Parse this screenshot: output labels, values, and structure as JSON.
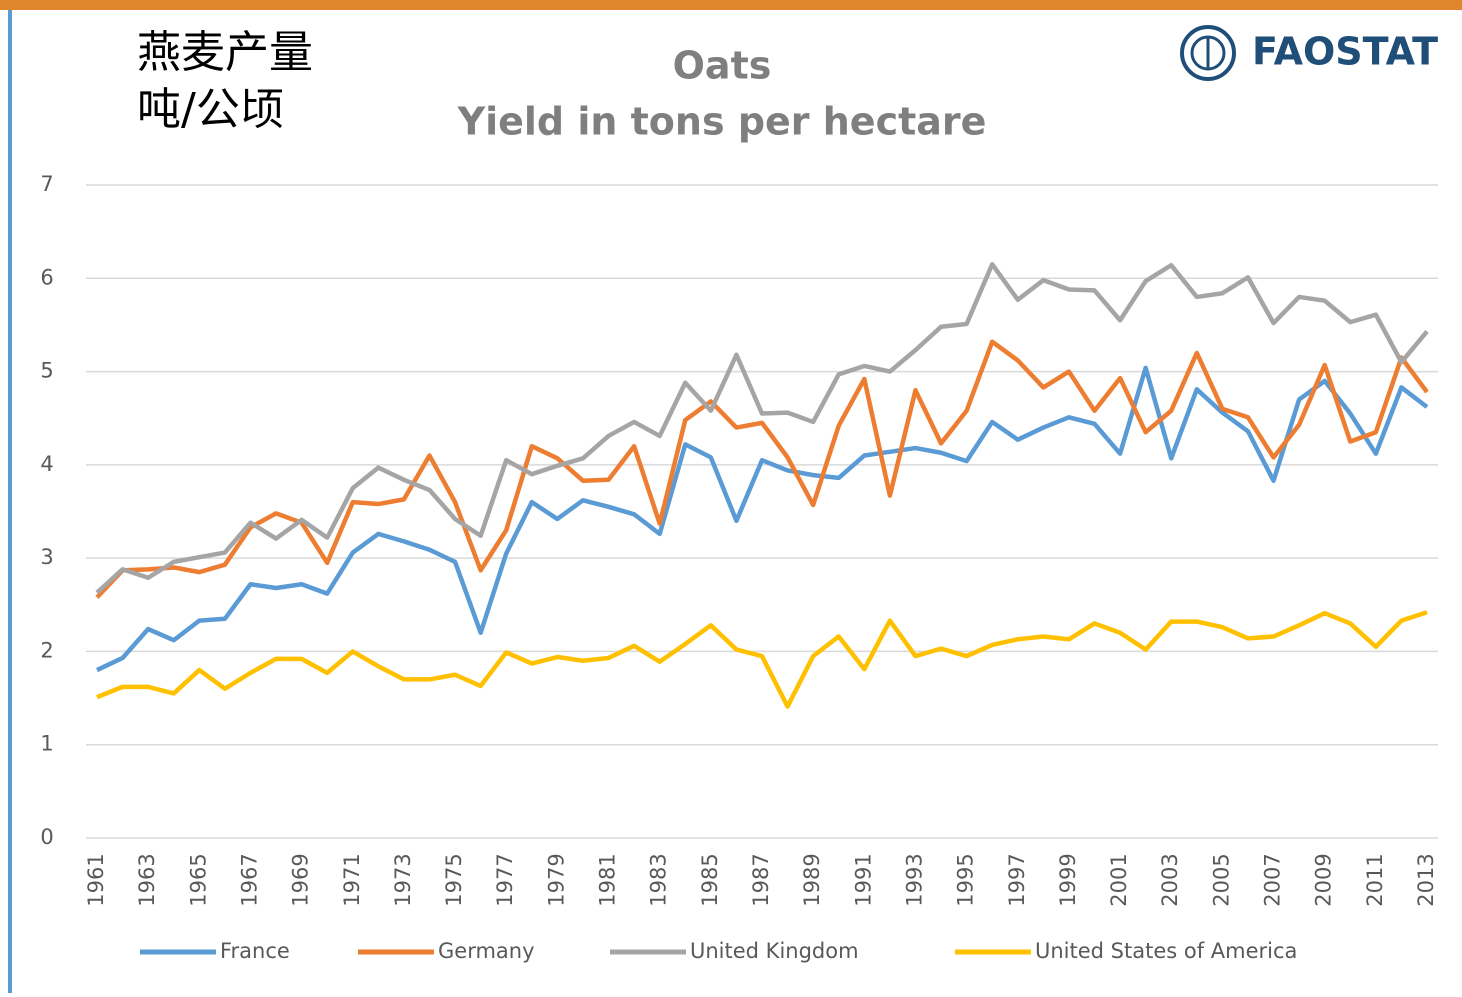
{
  "chart_data": {
    "type": "line",
    "title": "Oats",
    "subtitle": "Yield in tons per hectare",
    "annotations": [
      "燕麦产量",
      "吨/公顷"
    ],
    "logo": "FAOSTAT",
    "categories": [
      "1961",
      null,
      "1963",
      null,
      "1965",
      null,
      "1967",
      null,
      "1969",
      null,
      "1971",
      null,
      "1973",
      null,
      "1975",
      null,
      "1977",
      null,
      "1979",
      null,
      "1981",
      null,
      "1983",
      null,
      "1985",
      null,
      "1987",
      null,
      "1989",
      null,
      "1991",
      null,
      "1993",
      null,
      "1995",
      null,
      "1997",
      null,
      "1999",
      null,
      "2001",
      null,
      "2003",
      null,
      "2005",
      null,
      "2007",
      null,
      "2009",
      null,
      "2011",
      null,
      "2013"
    ],
    "series": [
      {
        "name": "France",
        "color": "#5b9bd5",
        "values": [
          1.8,
          1.93,
          2.24,
          2.12,
          2.33,
          2.35,
          2.72,
          2.68,
          2.72,
          2.62,
          3.06,
          3.26,
          3.18,
          3.09,
          2.96,
          2.2,
          3.05,
          3.6,
          3.42,
          3.62,
          3.55,
          3.47,
          3.26,
          4.22,
          4.08,
          3.4,
          4.05,
          3.94,
          3.89,
          3.86,
          4.1,
          4.14,
          4.18,
          4.13,
          4.04,
          4.46,
          4.27,
          4.4,
          4.51,
          4.44,
          4.12,
          5.04,
          4.07,
          4.81,
          4.56,
          4.36,
          3.83,
          4.7,
          4.9,
          4.55,
          4.12,
          4.83,
          4.62
        ]
      },
      {
        "name": "Germany",
        "color": "#ed7d31",
        "values": [
          2.58,
          2.87,
          2.88,
          2.9,
          2.85,
          2.93,
          3.33,
          3.48,
          3.38,
          2.95,
          3.6,
          3.58,
          3.63,
          4.1,
          3.6,
          2.87,
          3.3,
          4.2,
          4.07,
          3.83,
          3.84,
          4.2,
          3.37,
          4.48,
          4.68,
          4.4,
          4.45,
          4.08,
          3.57,
          4.42,
          4.92,
          3.67,
          4.8,
          4.23,
          4.58,
          5.32,
          5.12,
          4.83,
          5.0,
          4.58,
          4.93,
          4.35,
          4.58,
          5.2,
          4.6,
          4.51,
          4.08,
          4.43,
          5.07,
          4.25,
          4.35,
          5.15,
          4.78
        ]
      },
      {
        "name": "United Kingdom",
        "color": "#a5a5a5",
        "values": [
          2.63,
          2.88,
          2.79,
          2.96,
          3.01,
          3.06,
          3.38,
          3.21,
          3.41,
          3.22,
          3.75,
          3.97,
          3.84,
          3.73,
          3.42,
          3.24,
          4.05,
          3.9,
          3.99,
          4.07,
          4.31,
          4.46,
          4.31,
          4.88,
          4.58,
          5.18,
          4.55,
          4.56,
          4.46,
          4.97,
          5.06,
          5.0,
          5.23,
          5.48,
          5.51,
          6.15,
          5.77,
          5.98,
          5.88,
          5.87,
          5.55,
          5.97,
          6.14,
          5.8,
          5.84,
          6.01,
          5.52,
          5.8,
          5.76,
          5.53,
          5.61,
          5.1,
          5.43
        ]
      },
      {
        "name": "United States of America",
        "color": "#ffc000",
        "values": [
          1.51,
          1.62,
          1.62,
          1.55,
          1.8,
          1.6,
          1.77,
          1.92,
          1.92,
          1.77,
          2.0,
          1.84,
          1.7,
          1.7,
          1.75,
          1.63,
          1.99,
          1.87,
          1.94,
          1.9,
          1.93,
          2.06,
          1.89,
          2.08,
          2.28,
          2.02,
          1.95,
          1.41,
          1.95,
          2.16,
          1.81,
          2.33,
          1.95,
          2.03,
          1.95,
          2.07,
          2.13,
          2.16,
          2.13,
          2.3,
          2.2,
          2.02,
          2.32,
          2.32,
          2.26,
          2.14,
          2.16,
          2.28,
          2.41,
          2.3,
          2.05,
          2.33,
          2.42
        ]
      }
    ],
    "ylim": [
      0,
      7
    ],
    "yticks": [
      0,
      1,
      2,
      3,
      4,
      5,
      6,
      7
    ],
    "grid": true,
    "legend": "bottom"
  }
}
